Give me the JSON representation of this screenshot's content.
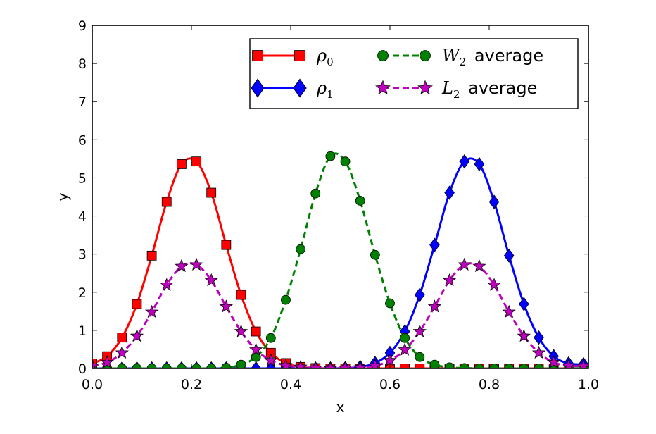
{
  "chart_data": {
    "type": "line",
    "xlabel": "x",
    "ylabel": "y",
    "xlim": [
      0.0,
      1.0
    ],
    "ylim": [
      0,
      9
    ],
    "xticks": [
      0.0,
      0.2,
      0.4,
      0.6,
      0.8,
      1.0
    ],
    "xtick_labels": [
      "0.0",
      "0.2",
      "0.4",
      "0.6",
      "0.8",
      "1.0"
    ],
    "yticks": [
      0,
      1,
      2,
      3,
      4,
      5,
      6,
      7,
      8,
      9
    ],
    "ytick_labels": [
      "0",
      "1",
      "2",
      "3",
      "4",
      "5",
      "6",
      "7",
      "8",
      "9"
    ],
    "grid": false,
    "legend_position": "top-right",
    "x": [
      0.0,
      0.03,
      0.06,
      0.09,
      0.12,
      0.15,
      0.18,
      0.21,
      0.24,
      0.27,
      0.3,
      0.33,
      0.36,
      0.39,
      0.42,
      0.45,
      0.48,
      0.51,
      0.54,
      0.57,
      0.6,
      0.63,
      0.66,
      0.69,
      0.72,
      0.75,
      0.78,
      0.81,
      0.84,
      0.87,
      0.9,
      0.93,
      0.96,
      0.99
    ],
    "series": [
      {
        "name_math": "ρ",
        "name_sub": "0",
        "color": "#ff0000",
        "line_style": "solid",
        "marker": "square",
        "values": [
          0.13,
          0.32,
          0.81,
          1.69,
          2.96,
          4.37,
          5.36,
          5.43,
          4.61,
          3.24,
          1.93,
          0.97,
          0.41,
          0.14,
          0.04,
          0.01,
          0.0,
          0.0,
          0.0,
          0.0,
          0.0,
          0.0,
          0.0,
          0.0,
          0.0,
          0.0,
          0.0,
          0.0,
          0.0,
          0.0,
          0.0,
          0.0,
          0.0,
          0.0
        ]
      },
      {
        "name_math": "ρ",
        "name_sub": "1",
        "color": "#0000ff",
        "line_style": "solid",
        "marker": "diamond",
        "values": [
          0.0,
          0.0,
          0.0,
          0.0,
          0.0,
          0.0,
          0.0,
          0.0,
          0.0,
          0.0,
          0.0,
          0.0,
          0.0,
          0.0,
          0.0,
          0.0,
          0.0,
          0.01,
          0.04,
          0.14,
          0.41,
          0.97,
          1.93,
          3.24,
          4.61,
          5.43,
          5.36,
          4.37,
          2.96,
          1.69,
          0.81,
          0.32,
          0.13,
          0.11
        ]
      },
      {
        "name_math": "W",
        "name_sub": "2",
        "name_text": " average",
        "color": "#008000",
        "line_style": "dashed",
        "marker": "circle",
        "values": [
          0.0,
          0.0,
          0.0,
          0.0,
          0.0,
          0.0,
          0.0,
          0.0,
          0.0,
          0.02,
          0.1,
          0.3,
          0.8,
          1.8,
          3.13,
          4.59,
          5.57,
          5.43,
          4.4,
          2.98,
          1.71,
          0.8,
          0.3,
          0.1,
          0.03,
          0.01,
          0.0,
          0.0,
          0.0,
          0.0,
          0.0,
          0.0,
          0.0,
          0.0
        ]
      },
      {
        "name_math": "L",
        "name_sub": "2",
        "name_text": " average",
        "color": "#bf00bf",
        "line_style": "dashed",
        "marker": "star",
        "values": [
          0.07,
          0.16,
          0.41,
          0.85,
          1.48,
          2.19,
          2.68,
          2.72,
          2.31,
          1.62,
          0.97,
          0.49,
          0.21,
          0.08,
          0.04,
          0.01,
          0.0,
          0.01,
          0.02,
          0.07,
          0.21,
          0.49,
          0.97,
          1.62,
          2.31,
          2.72,
          2.68,
          2.19,
          1.48,
          0.85,
          0.41,
          0.16,
          0.07,
          0.06
        ]
      }
    ]
  }
}
